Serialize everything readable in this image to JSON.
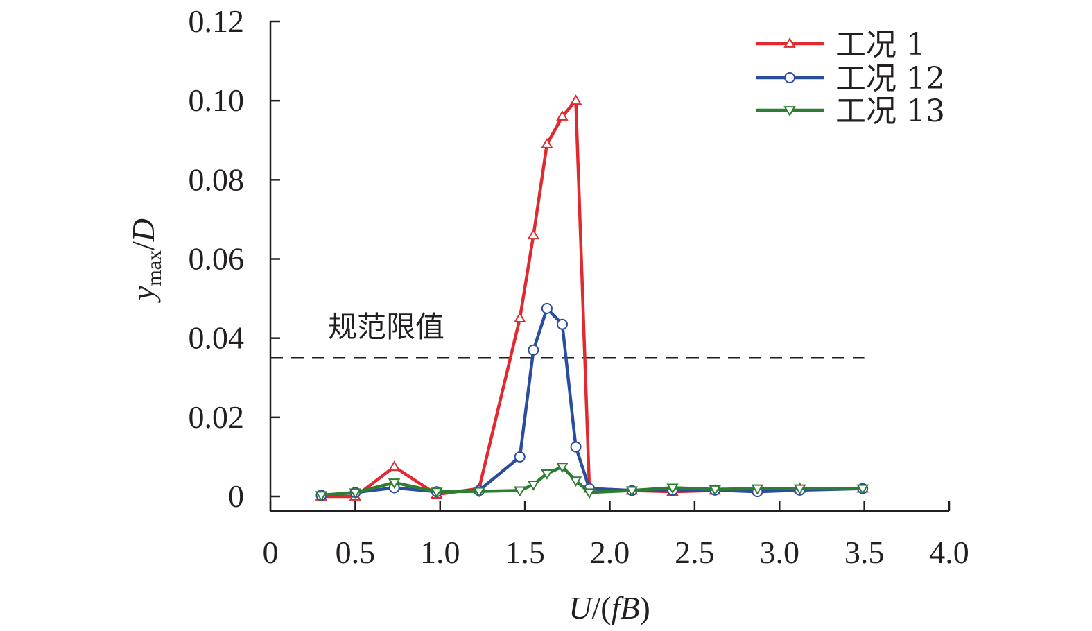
{
  "chart_data": {
    "type": "line",
    "xlabel_parts": [
      "U",
      "/(",
      "fB",
      ")"
    ],
    "ylabel_parts": [
      "y",
      "max",
      "/",
      "D"
    ],
    "xlim": [
      0,
      4.0
    ],
    "ylim": [
      0,
      0.12
    ],
    "x_ticks": [
      0,
      0.5,
      1.0,
      1.5,
      2.0,
      2.5,
      3.0,
      3.5,
      4.0
    ],
    "x_tick_labels": [
      "0",
      "0.5",
      "1.0",
      "1.5",
      "2.0",
      "2.5",
      "3.0",
      "3.5",
      "4.0"
    ],
    "y_ticks": [
      0,
      0.02,
      0.04,
      0.06,
      0.08,
      0.1,
      0.12
    ],
    "y_tick_labels": [
      "0",
      "0.02",
      "0.04",
      "0.06",
      "0.08",
      "0.10",
      "0.12"
    ],
    "grid": false,
    "legend_position": "top-right",
    "reference_line": {
      "label": "规范限值",
      "y": 0.035,
      "x_range": [
        0,
        3.5
      ],
      "style": "dashed",
      "color": "#231f20"
    },
    "series": [
      {
        "name": "工况 1",
        "color": "#e02a2f",
        "marker": "triangle-up",
        "x": [
          0.3,
          0.5,
          0.73,
          0.98,
          1.23,
          1.47,
          1.55,
          1.63,
          1.72,
          1.8,
          1.88,
          2.13,
          2.37,
          2.62,
          2.87,
          3.12,
          3.49
        ],
        "y": [
          0.0,
          0.0,
          0.0075,
          0.0005,
          0.002,
          0.045,
          0.066,
          0.089,
          0.096,
          0.1,
          0.002,
          0.0015,
          0.0012,
          0.0015,
          0.0015,
          0.002,
          0.002
        ]
      },
      {
        "name": "工况 12",
        "color": "#2a4e9e",
        "marker": "circle",
        "x": [
          0.3,
          0.5,
          0.73,
          0.98,
          1.23,
          1.47,
          1.55,
          1.63,
          1.72,
          1.8,
          1.88,
          2.13,
          2.37,
          2.62,
          2.87,
          3.12,
          3.49
        ],
        "y": [
          0.0003,
          0.001,
          0.0022,
          0.0012,
          0.0015,
          0.01,
          0.037,
          0.0475,
          0.0435,
          0.0125,
          0.002,
          0.0015,
          0.0016,
          0.0016,
          0.0012,
          0.0016,
          0.002
        ]
      },
      {
        "name": "工况 13",
        "color": "#2e7d32",
        "marker": "triangle-down",
        "x": [
          0.3,
          0.5,
          0.73,
          0.98,
          1.23,
          1.47,
          1.55,
          1.63,
          1.72,
          1.8,
          1.88,
          2.13,
          2.37,
          2.62,
          2.87,
          3.12,
          3.49
        ],
        "y": [
          0.0003,
          0.001,
          0.0035,
          0.0012,
          0.0013,
          0.0015,
          0.003,
          0.0058,
          0.0075,
          0.004,
          0.001,
          0.0015,
          0.0022,
          0.0018,
          0.002,
          0.002,
          0.002
        ]
      }
    ]
  }
}
